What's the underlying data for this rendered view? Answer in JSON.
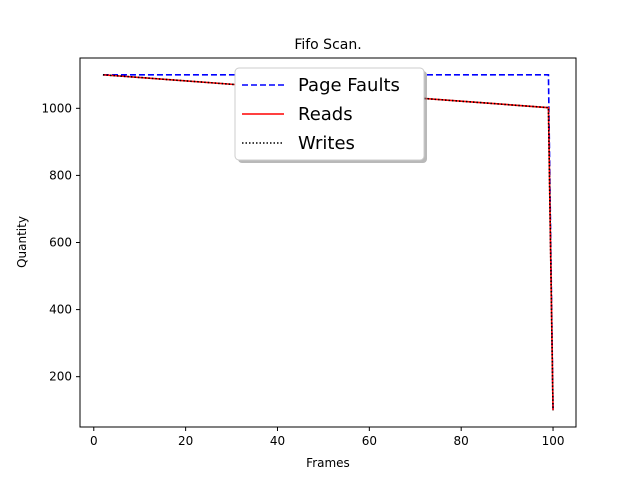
{
  "chart_data": {
    "type": "line",
    "title": "Fifo Scan.",
    "xlabel": "Frames",
    "ylabel": "Quantity",
    "xlim": [
      -3,
      105
    ],
    "ylim": [
      50,
      1150
    ],
    "xticks": [
      0,
      20,
      40,
      60,
      80,
      100
    ],
    "yticks": [
      200,
      400,
      600,
      800,
      1000
    ],
    "legend_position": "upper-center",
    "series": [
      {
        "name": "Page Faults",
        "color": "#0000ff",
        "style": "dashed",
        "x": [
          2,
          99,
          100
        ],
        "y": [
          1100,
          1100,
          100
        ]
      },
      {
        "name": "Reads",
        "color": "#ff0000",
        "style": "solid",
        "x": [
          2,
          99,
          100
        ],
        "y": [
          1100,
          1002,
          100
        ]
      },
      {
        "name": "Writes",
        "color": "#000000",
        "style": "dotted",
        "x": [
          2,
          99,
          100
        ],
        "y": [
          1100,
          1002,
          100
        ]
      }
    ]
  }
}
